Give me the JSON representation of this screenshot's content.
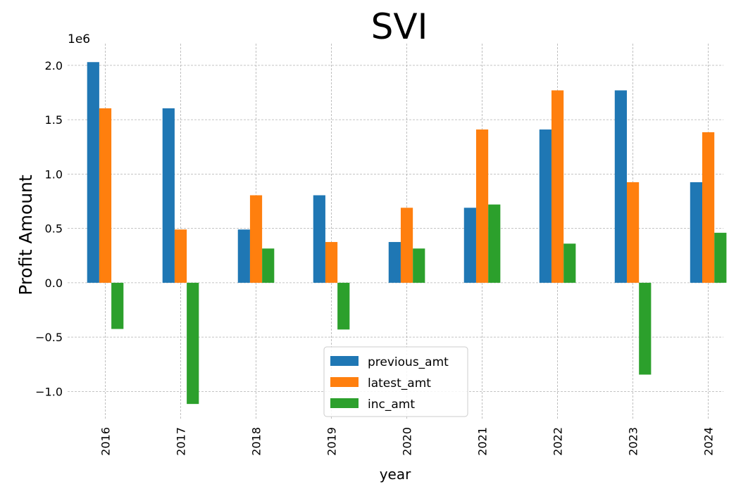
{
  "chart_data": {
    "type": "bar",
    "title": "SVI",
    "xlabel": "year",
    "ylabel": "Profit Amount",
    "y_offset_label": "1e6",
    "categories": [
      "2016",
      "2017",
      "2018",
      "2019",
      "2020",
      "2021",
      "2022",
      "2023",
      "2024"
    ],
    "series": [
      {
        "name": "previous_amt",
        "color": "#1f77b4",
        "values": [
          2030000,
          1605000,
          490000,
          805000,
          375000,
          690000,
          1410000,
          1770000,
          925000
        ]
      },
      {
        "name": "latest_amt",
        "color": "#ff7f0e",
        "values": [
          1605000,
          490000,
          805000,
          375000,
          690000,
          1410000,
          1770000,
          925000,
          1385000
        ]
      },
      {
        "name": "inc_amt",
        "color": "#2ca02c",
        "values": [
          -425000,
          -1115000,
          315000,
          -430000,
          315000,
          720000,
          360000,
          -845000,
          460000
        ]
      }
    ],
    "ylim": [
      -1.25,
      2.2
    ],
    "y_ticks": [
      2.0,
      1.5,
      1.0,
      0.5,
      0.0,
      -0.5,
      -1.0
    ],
    "y_tick_labels": [
      "2.0",
      "1.5",
      "1.0",
      "0.5",
      "0.0",
      "−0.5",
      "−1.0"
    ],
    "grid": true,
    "legend_position": "bottom-center"
  }
}
